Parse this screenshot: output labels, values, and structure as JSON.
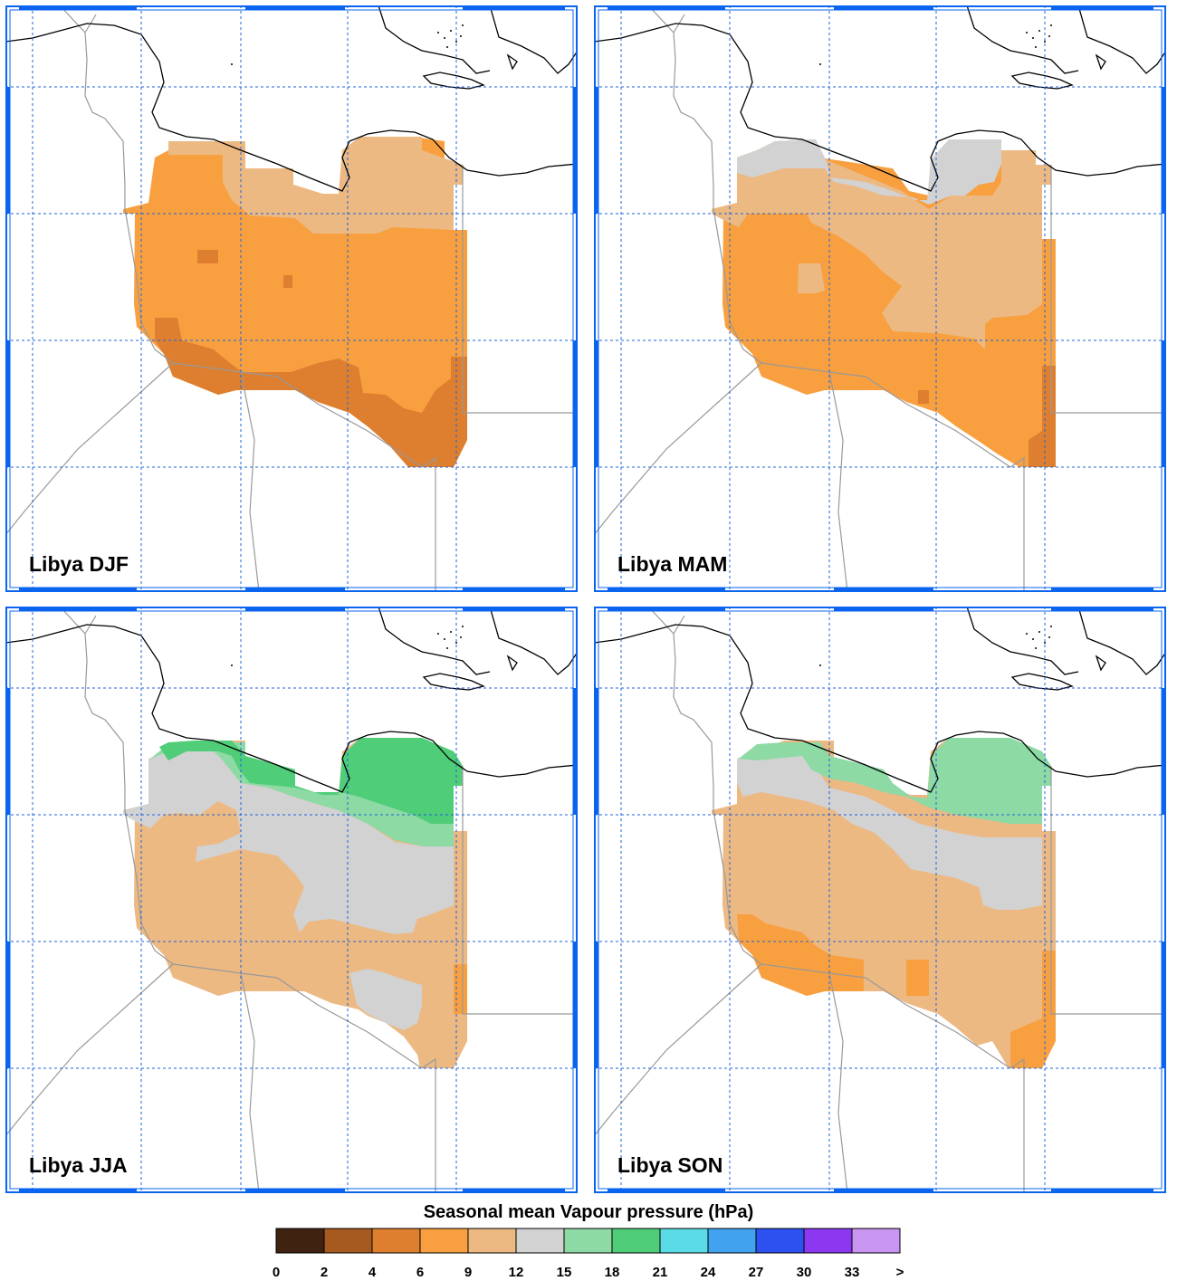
{
  "panels": [
    {
      "id": "djf",
      "title": "Libya DJF"
    },
    {
      "id": "mam",
      "title": "Libya MAM"
    },
    {
      "id": "jja",
      "title": "Libya JJA"
    },
    {
      "id": "son",
      "title": "Libya SON"
    }
  ],
  "colorbar": {
    "title": "Seasonal mean Vapour pressure (hPa)",
    "tick_labels": [
      "0",
      "2",
      "4",
      "6",
      "9",
      "12",
      "15",
      "18",
      "21",
      "24",
      "27",
      "30",
      "33",
      ">"
    ],
    "colors": [
      "#3f2210",
      "#a65a20",
      "#de7f30",
      "#f8a040",
      "#ecb983",
      "#d2d2d2",
      "#8ddaa5",
      "#50cd78",
      "#5adbe5",
      "#41a2f0",
      "#2d50f0",
      "#8c37f0",
      "#c896f0"
    ]
  },
  "colors": {
    "frame": "#0a64f0",
    "grid": "#1e64dc",
    "coast": "#000000",
    "border": "#999999"
  }
}
